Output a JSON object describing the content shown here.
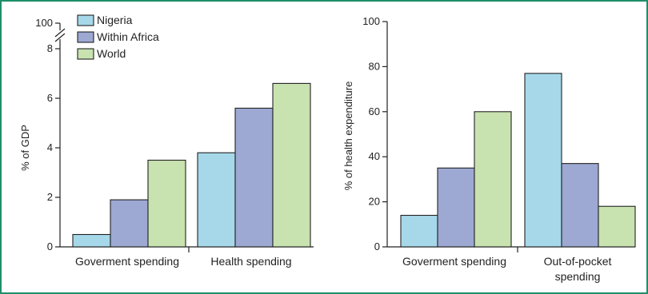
{
  "colors": {
    "nigeria": "#a6d8ea",
    "within_africa": "#9da8d3",
    "world": "#c8e2b0"
  },
  "legend": [
    {
      "label": "Nigeria",
      "color": "#a6d8ea"
    },
    {
      "label": "Within Africa",
      "color": "#9da8d3"
    },
    {
      "label": "World",
      "color": "#c8e2b0"
    }
  ],
  "chart_data": [
    {
      "type": "bar",
      "ylabel": "% of GDP",
      "xlabel": "",
      "ylim": [
        0,
        8
      ],
      "axis_break": {
        "lower_max": 8,
        "upper_label": 100
      },
      "yticks": [
        "0",
        "2",
        "4",
        "6",
        "8"
      ],
      "categories": [
        "Goverment spending",
        "Health spending"
      ],
      "series": [
        {
          "name": "Nigeria",
          "values": [
            0.5,
            3.8
          ]
        },
        {
          "name": "Within Africa",
          "values": [
            1.9,
            5.6
          ]
        },
        {
          "name": "World",
          "values": [
            3.5,
            6.6
          ]
        }
      ],
      "legend_position": "top-left",
      "grid": false
    },
    {
      "type": "bar",
      "ylabel": "% of health expenditure",
      "xlabel": "",
      "ylim": [
        0,
        100
      ],
      "yticks": [
        "0",
        "20",
        "40",
        "60",
        "80",
        "100"
      ],
      "categories": [
        "Goverment spending",
        "Out-of-pocket spending"
      ],
      "category_lines": [
        [
          "Goverment spending"
        ],
        [
          "Out-of-pocket",
          "spending"
        ]
      ],
      "series": [
        {
          "name": "Nigeria",
          "values": [
            14,
            77
          ]
        },
        {
          "name": "Within Africa",
          "values": [
            35,
            37
          ]
        },
        {
          "name": "World",
          "values": [
            60,
            18
          ]
        }
      ],
      "grid": false
    }
  ]
}
